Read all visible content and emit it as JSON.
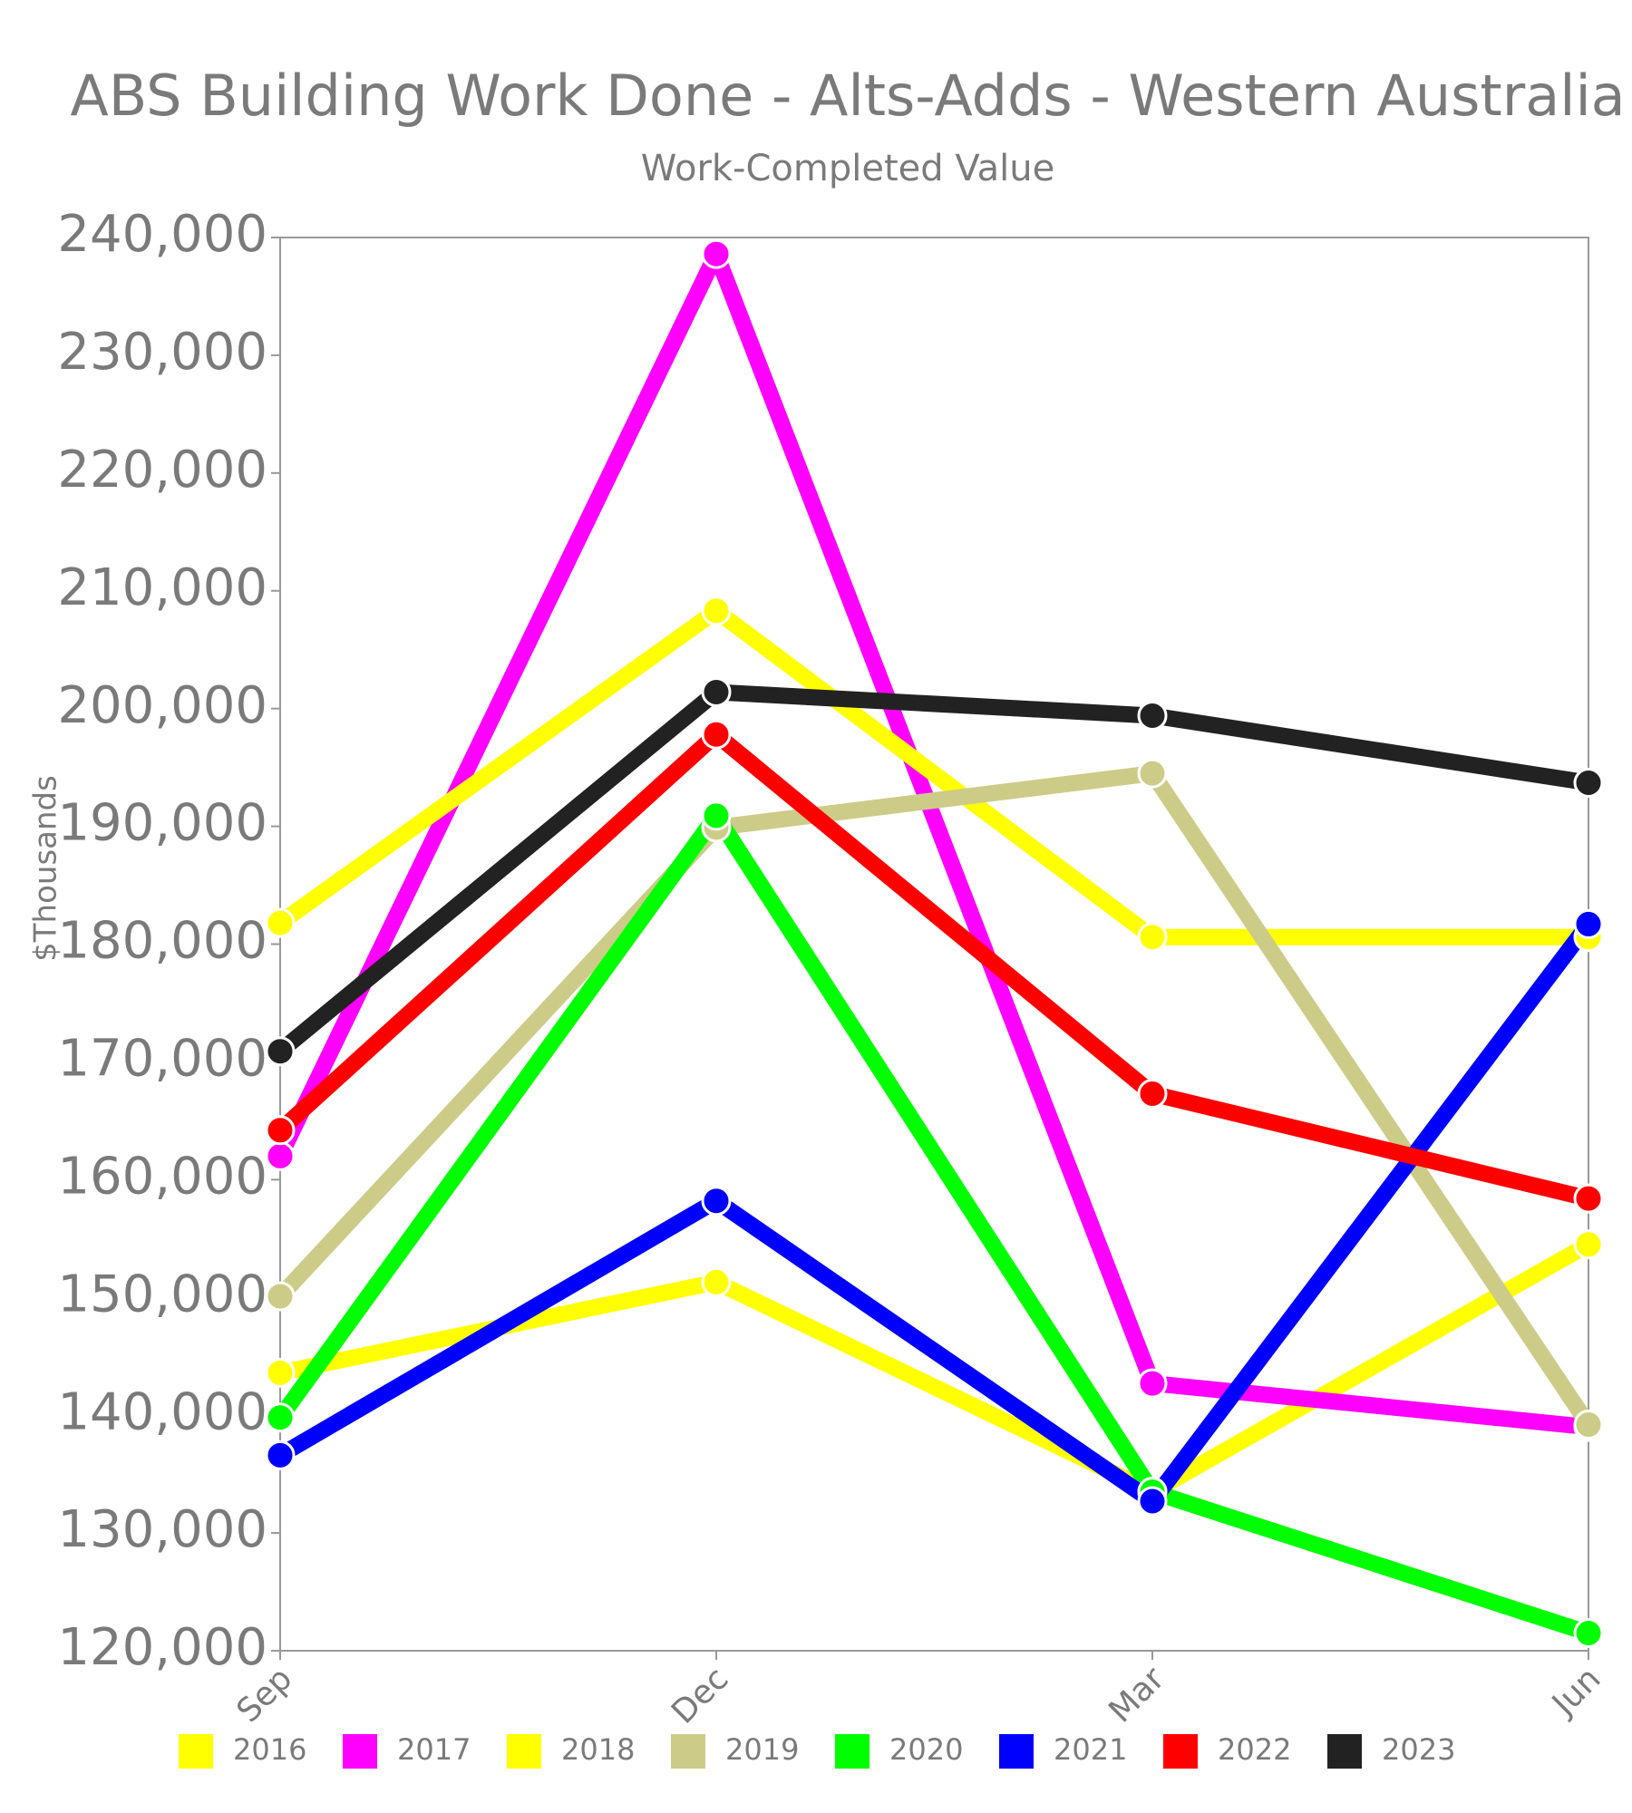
{
  "chart_data": {
    "type": "line",
    "title": "ABS Building Work Done - Alts-Adds - Western Australia",
    "subtitle": "Work-Completed Value",
    "y_label": "$Thousands",
    "categories": [
      "Sep",
      "Dec",
      "Mar",
      "Jun"
    ],
    "series": [
      {
        "name": "2016",
        "color": "#ffff00",
        "values": [
          143600,
          151300,
          133500,
          154500
        ]
      },
      {
        "name": "2017",
        "color": "#ff00ff",
        "values": [
          162000,
          238600,
          142700,
          139000
        ]
      },
      {
        "name": "2018",
        "color": "#ffff00",
        "values": [
          181800,
          208300,
          180600,
          180600
        ]
      },
      {
        "name": "2019",
        "color": "#cccc88",
        "values": [
          150100,
          189900,
          194500,
          139200
        ]
      },
      {
        "name": "2020",
        "color": "#00ff00",
        "values": [
          139800,
          190900,
          133500,
          121500
        ]
      },
      {
        "name": "2021",
        "color": "#0000ff",
        "values": [
          136600,
          158200,
          132700,
          181700
        ]
      },
      {
        "name": "2022",
        "color": "#ff0000",
        "values": [
          164200,
          197800,
          167300,
          158400
        ]
      },
      {
        "name": "2023",
        "color": "#222222",
        "values": [
          170900,
          201400,
          199400,
          193700
        ]
      }
    ],
    "ylim": [
      120000,
      240000
    ],
    "yticks": [
      {
        "value": 120000,
        "label": "120,000"
      },
      {
        "value": 130000,
        "label": "130,000"
      },
      {
        "value": 140000,
        "label": "140,000"
      },
      {
        "value": 150000,
        "label": "150,000"
      },
      {
        "value": 160000,
        "label": "160,000"
      },
      {
        "value": 170000,
        "label": "170,000"
      },
      {
        "value": 180000,
        "label": "180,000"
      },
      {
        "value": 190000,
        "label": "190,000"
      },
      {
        "value": 200000,
        "label": "200,000"
      },
      {
        "value": 210000,
        "label": "210,000"
      },
      {
        "value": 220000,
        "label": "220,000"
      },
      {
        "value": 230000,
        "label": "230,000"
      },
      {
        "value": 240000,
        "label": "240,000"
      }
    ],
    "grid": false,
    "legend": "bottom"
  }
}
